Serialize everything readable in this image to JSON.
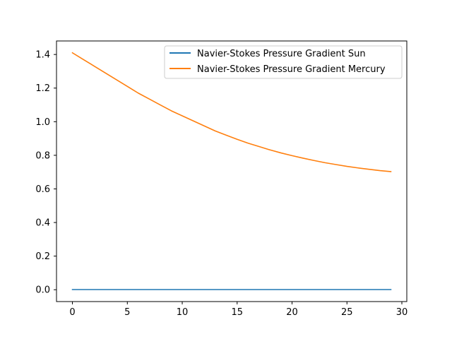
{
  "chart_data": {
    "type": "line",
    "title": "",
    "xlabel": "",
    "ylabel": "",
    "xlim": [
      -1.45,
      30.45
    ],
    "ylim": [
      -0.0705,
      1.4805
    ],
    "x_ticks": [
      0,
      5,
      10,
      15,
      20,
      25,
      30
    ],
    "y_ticks": [
      0.0,
      0.2,
      0.4,
      0.6,
      0.8,
      1.0,
      1.2,
      1.4
    ],
    "x_tick_labels": [
      "0",
      "5",
      "10",
      "15",
      "20",
      "25",
      "30"
    ],
    "y_tick_labels": [
      "0.0",
      "0.2",
      "0.4",
      "0.6",
      "0.8",
      "1.0",
      "1.2",
      "1.4"
    ],
    "grid": false,
    "legend_position": "top-right",
    "x": [
      0,
      1,
      2,
      3,
      4,
      5,
      6,
      7,
      8,
      9,
      10,
      11,
      12,
      13,
      14,
      15,
      16,
      17,
      18,
      19,
      20,
      21,
      22,
      23,
      24,
      25,
      26,
      27,
      28,
      29
    ],
    "series": [
      {
        "name": "Navier-Stokes Pressure Gradient Sun",
        "color": "#1f77b4",
        "values": [
          0.001,
          0.001,
          0.001,
          0.001,
          0.001,
          0.001,
          0.001,
          0.001,
          0.001,
          0.001,
          0.001,
          0.001,
          0.001,
          0.001,
          0.001,
          0.001,
          0.001,
          0.001,
          0.001,
          0.001,
          0.001,
          0.001,
          0.001,
          0.001,
          0.001,
          0.001,
          0.001,
          0.001,
          0.001,
          0.001
        ]
      },
      {
        "name": "Navier-Stokes Pressure Gradient Mercury",
        "color": "#ff7f0e",
        "values": [
          1.41,
          1.37,
          1.33,
          1.29,
          1.25,
          1.21,
          1.17,
          1.135,
          1.1,
          1.065,
          1.035,
          1.005,
          0.975,
          0.945,
          0.92,
          0.895,
          0.872,
          0.852,
          0.832,
          0.814,
          0.798,
          0.783,
          0.769,
          0.756,
          0.745,
          0.734,
          0.725,
          0.717,
          0.709,
          0.703
        ]
      }
    ]
  }
}
